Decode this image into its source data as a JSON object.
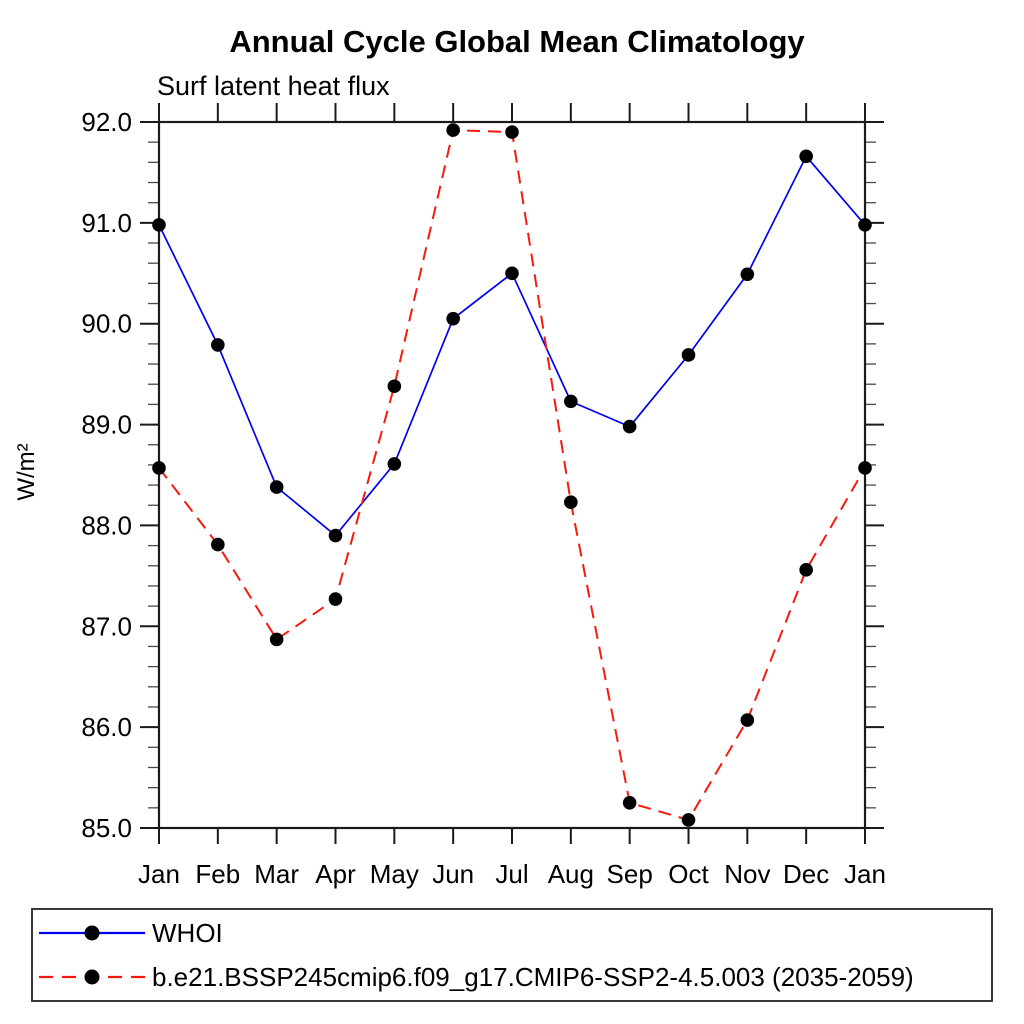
{
  "chart_data": {
    "type": "line",
    "title": "Annual Cycle Global Mean Climatology",
    "subtitle": "Surf latent heat flux",
    "ylabel": "W/m²",
    "xlabel": "",
    "categories": [
      "Jan",
      "Feb",
      "Mar",
      "Apr",
      "May",
      "Jun",
      "Jul",
      "Aug",
      "Sep",
      "Oct",
      "Nov",
      "Dec",
      "Jan"
    ],
    "ylim": [
      85.0,
      92.0
    ],
    "ytick_major_step": 1.0,
    "ytick_minor_step": 0.2,
    "ytick_labels": [
      "85.0",
      "86.0",
      "87.0",
      "88.0",
      "89.0",
      "90.0",
      "91.0",
      "92.0"
    ],
    "grid": false,
    "legend_position": "bottom-left-box",
    "axis_color": "#1a1a1a",
    "series": [
      {
        "name": "WHOI",
        "color": "#0000ee",
        "line_style": "solid",
        "marker": "filled-circle",
        "marker_color": "#000000",
        "values": [
          90.98,
          89.79,
          88.38,
          87.9,
          88.61,
          90.05,
          90.5,
          89.23,
          88.98,
          89.69,
          90.49,
          91.66,
          90.98
        ]
      },
      {
        "name": "b.e21.BSSP245cmip6.f09_g17.CMIP6-SSP2-4.5.003 (2035-2059)",
        "color": "#f61a0e",
        "line_style": "dashed",
        "marker": "filled-circle",
        "marker_color": "#000000",
        "values": [
          88.57,
          87.81,
          86.87,
          87.27,
          89.38,
          91.92,
          91.9,
          88.23,
          85.25,
          85.08,
          86.07,
          87.56,
          88.57
        ]
      }
    ]
  }
}
